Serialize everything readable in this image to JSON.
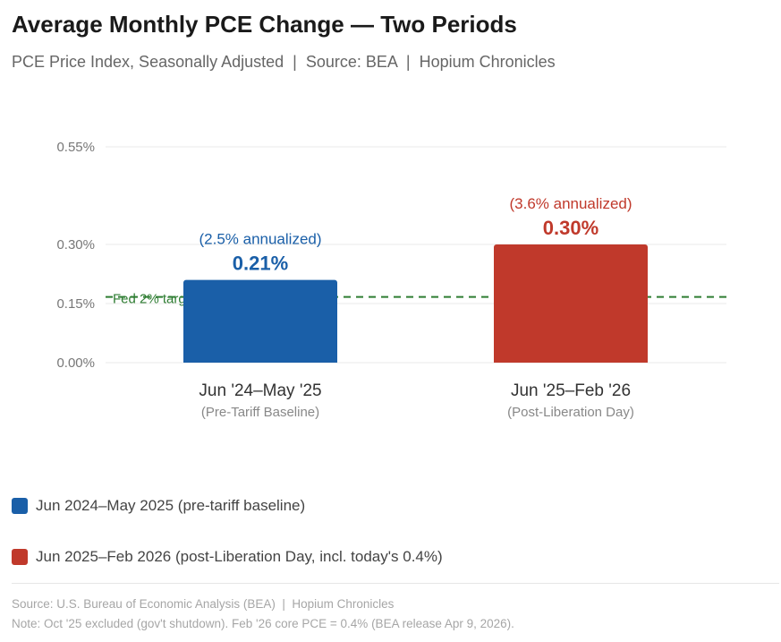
{
  "header": {
    "title": "Average Monthly PCE Change — Two Periods",
    "subtitle": "PCE Price Index, Seasonally Adjusted  |  Source: BEA  |  Hopium Chronicles"
  },
  "chart_data": {
    "type": "bar",
    "categories": [
      "Jun '24–May '25",
      "Jun '25–Feb '26"
    ],
    "category_sublabels": [
      "(Pre-Tariff Baseline)",
      "(Post-Liberation Day)"
    ],
    "values": [
      0.21,
      0.3
    ],
    "value_labels": [
      "0.21%",
      "0.30%"
    ],
    "annotations": [
      "(2.5% annualized)",
      "(3.6% annualized)"
    ],
    "colors": [
      "#1a5fa8",
      "#c0392b"
    ],
    "y_ticks": [
      0.0,
      0.15,
      0.3,
      0.55
    ],
    "y_tick_labels": [
      "0.00%",
      "0.15%",
      "0.30%",
      "0.55%"
    ],
    "ylim": [
      0,
      0.55
    ],
    "grid": true,
    "reference_line": {
      "value": 0.1667,
      "label": "Fed 2% target",
      "color": "#2e7d32"
    },
    "legend": {
      "placement": "bottom",
      "items": [
        {
          "label": "Jun 2024–May 2025 (pre-tariff baseline)",
          "color": "#1a5fa8"
        },
        {
          "label": "Jun 2025–Feb 2026 (post-Liberation Day, incl. today's 0.4%)",
          "color": "#c0392b"
        }
      ]
    }
  },
  "footer": {
    "source": "Source: U.S. Bureau of Economic Analysis (BEA)  |  Hopium Chronicles",
    "note": "Note: Oct '25 excluded (gov't shutdown). Feb '26 core PCE = 0.4% (BEA release Apr 9, 2026)."
  }
}
